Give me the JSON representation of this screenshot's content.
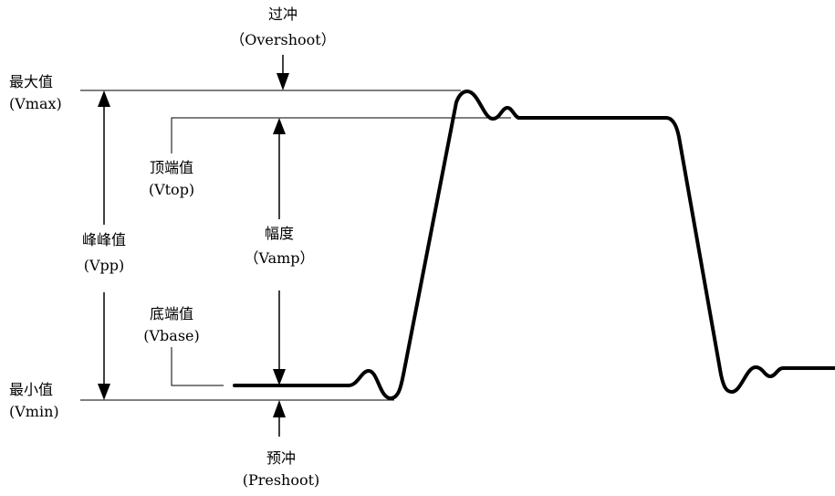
{
  "labels": {
    "overshoot_cn": "过冲",
    "overshoot_en": "（Overshoot）",
    "vmax_cn": "最大值",
    "vmax_en": "(Vmax)",
    "vtop_cn": "顶端值",
    "vtop_en": "(Vtop)",
    "vpp_cn": "峰峰值",
    "vpp_en": "(Vpp)",
    "vamp_cn": "幅度",
    "vamp_en": "（Vamp）",
    "vbase_cn": "底端值",
    "vbase_en": "(Vbase)",
    "vmin_cn": "最小值",
    "vmin_en": "(Vmin)",
    "preshoot_cn": "预冲",
    "preshoot_en": "(Preshoot)"
  },
  "colors": {
    "ink": "#000000",
    "background": "#ffffff"
  }
}
